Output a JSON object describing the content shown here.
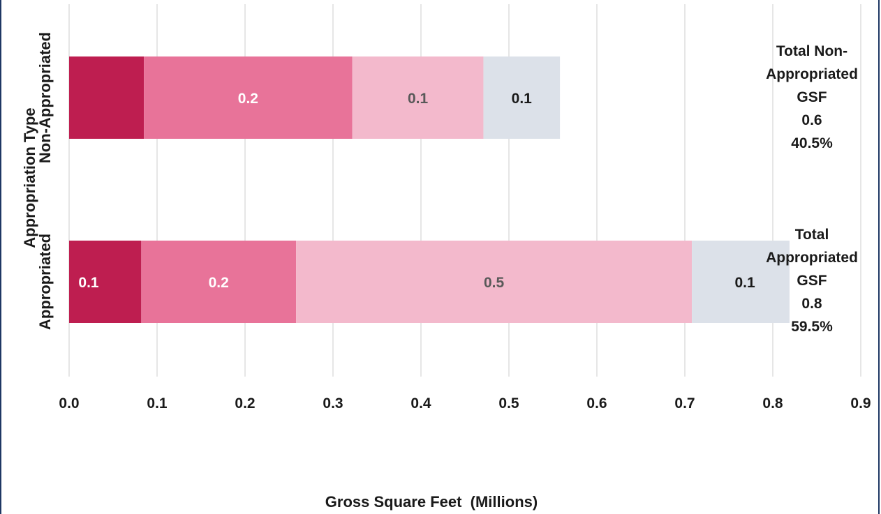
{
  "chart_data": {
    "type": "bar",
    "orientation": "horizontal",
    "stacked": true,
    "title": "",
    "xlabel": "Gross Square Feet  (Millions)",
    "ylabel": "Appropriation Type",
    "xlim": [
      0,
      0.9
    ],
    "xticks": [
      "0.0",
      "0.1",
      "0.2",
      "0.3",
      "0.4",
      "0.5",
      "0.6",
      "0.7",
      "0.8",
      "0.9"
    ],
    "grid": true,
    "categories": [
      "Non-Appropriated",
      "Appropriated"
    ],
    "series": [
      {
        "color": "#be1e50",
        "label_color": "#ffffff",
        "values": [
          0.085,
          0.082
        ],
        "labels": [
          "",
          "0.1"
        ]
      },
      {
        "color": "#e87399",
        "label_color": "#ffffff",
        "values": [
          0.237,
          0.176
        ],
        "labels": [
          "0.2",
          "0.2"
        ]
      },
      {
        "color": "#f3b9cc",
        "label_color": "#595959",
        "values": [
          0.149,
          0.45
        ],
        "labels": [
          "0.1",
          "0.5"
        ]
      },
      {
        "color": "#dce1e9",
        "label_color": "#1a1a1a",
        "values": [
          0.087,
          0.111
        ],
        "labels": [
          "0.1",
          "0.1"
        ]
      }
    ],
    "totals": [
      {
        "lines": [
          "Total Non-",
          "Appropriated",
          "GSF",
          "0.6",
          "40.5%"
        ]
      },
      {
        "lines": [
          "Total",
          "Appropriated",
          "GSF",
          "0.8",
          "59.5%"
        ]
      }
    ]
  }
}
